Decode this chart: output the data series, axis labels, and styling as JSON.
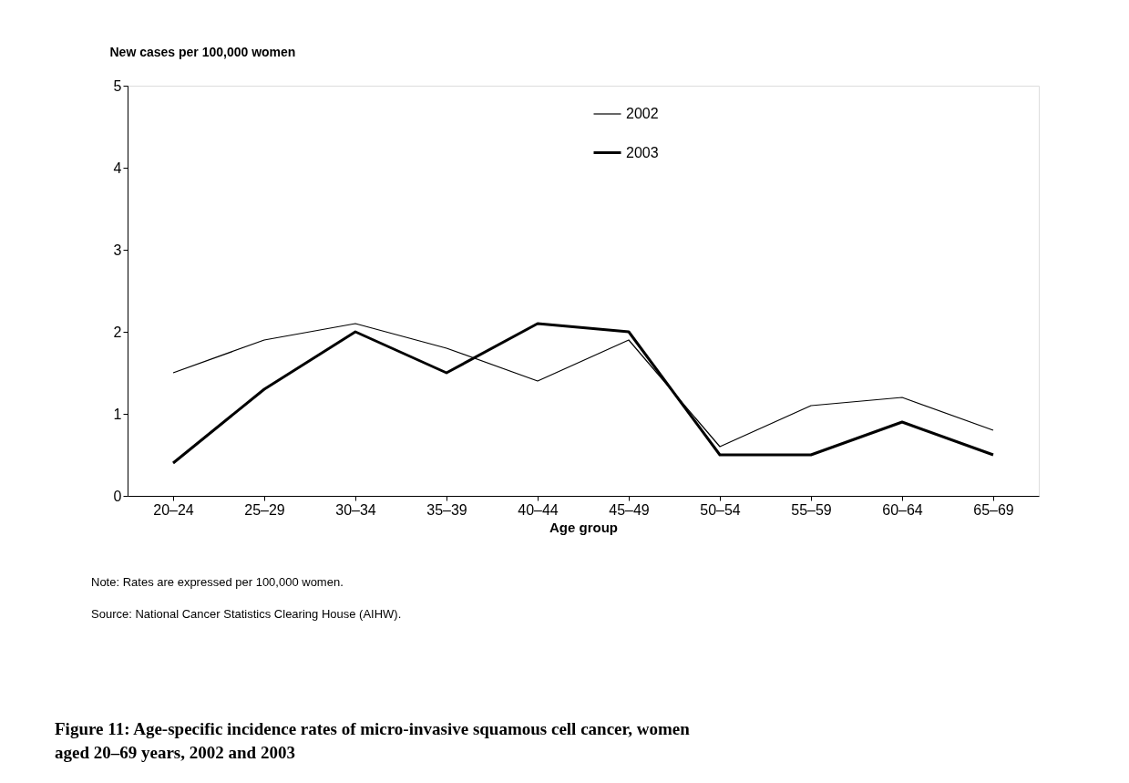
{
  "chart_data": {
    "type": "line",
    "title": "Figure 11: Age-specific incidence rates of micro-invasive squamous cell cancer, women aged 20–69 years, 2002 and 2003",
    "xlabel": "Age group",
    "ylabel": "New cases per 100,000 women",
    "categories": [
      "20–24",
      "25–29",
      "30–34",
      "35–39",
      "40–44",
      "45–49",
      "50–54",
      "55–59",
      "60–64",
      "65–69"
    ],
    "series": [
      {
        "name": "2002",
        "color": "#000000",
        "values": [
          1.5,
          1.9,
          2.1,
          1.8,
          1.4,
          1.9,
          0.6,
          1.1,
          1.2,
          0.8
        ]
      },
      {
        "name": "2003",
        "color": "#000000",
        "values": [
          0.4,
          1.3,
          2.0,
          1.5,
          2.1,
          2.0,
          0.5,
          0.5,
          0.9,
          0.5
        ]
      }
    ],
    "ylim": [
      0,
      5
    ],
    "yticks": [
      0,
      1,
      2,
      3,
      4,
      5
    ],
    "grid": false,
    "legend": "top right",
    "marker": "none",
    "line_style": "solid",
    "annotations": [
      "Note: Rates are expressed per 100,000 women.",
      "Source: National Cancer Statistics Clearing House (AIHW)."
    ]
  }
}
